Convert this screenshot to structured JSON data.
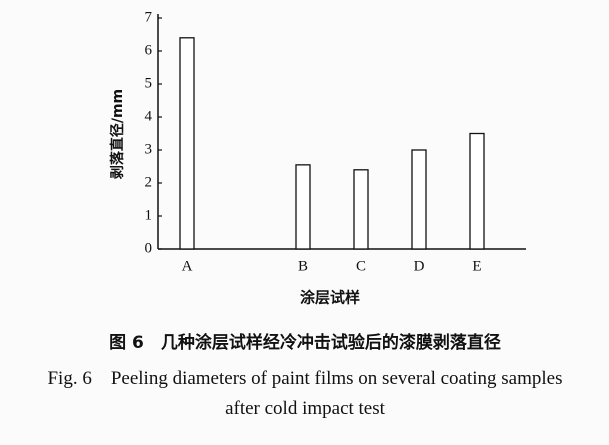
{
  "chart_data": {
    "type": "bar",
    "y_label": "剥落直径/mm",
    "x_label": "涂层试样",
    "categories": [
      "A",
      null,
      "B",
      "C",
      "D",
      "E"
    ],
    "values": [
      6.4,
      null,
      2.55,
      2.4,
      3.0,
      3.5
    ],
    "color": "#ffffff",
    "ylim": [
      0,
      7
    ],
    "yticks": [
      0,
      1,
      2,
      3,
      4,
      5,
      6,
      7
    ],
    "grid": false
  },
  "caption_cn": "图 6　几种涂层试样经冷冲击试验后的漆膜剥落直径",
  "caption_en": "Fig. 6　Peeling diameters of paint films on several coating samples after cold impact test"
}
